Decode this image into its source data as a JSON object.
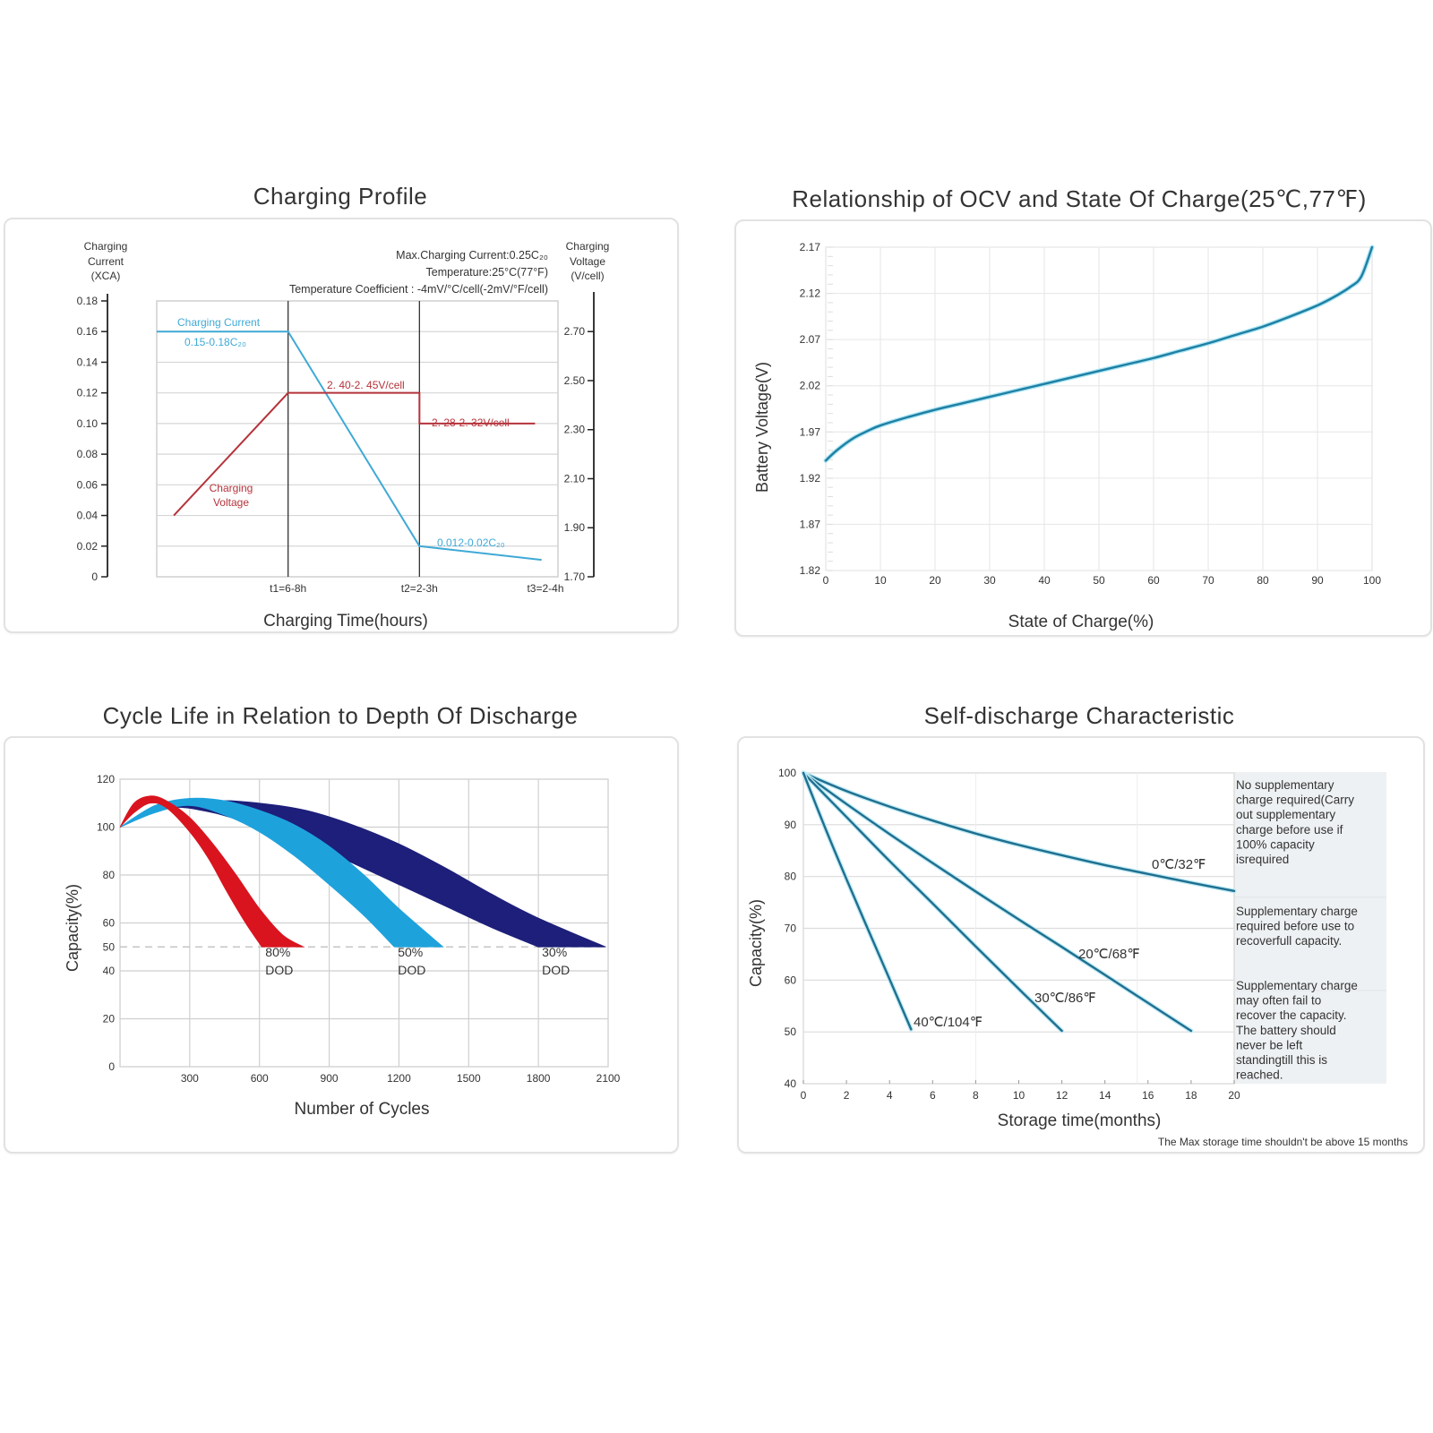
{
  "chart_data": [
    {
      "type": "line",
      "title": "Charging Profile",
      "xlabel": "Charging Time(hours)",
      "ylabel_left": [
        "Charging",
        "Current",
        "(XCA)"
      ],
      "ylabel_right": [
        "Charging",
        "Voltage",
        "(V/cell)"
      ],
      "left_ticks": [
        "0.18",
        "0.16",
        "0.14",
        "0.12",
        "0.10",
        "0.08",
        "0.06",
        "0.04",
        "0.02",
        "0"
      ],
      "left_tick_values": [
        0.18,
        0.16,
        0.14,
        0.12,
        0.1,
        0.08,
        0.06,
        0.04,
        0.02,
        0
      ],
      "right_ticks": [
        "2.70",
        "2.50",
        "2.30",
        "2.10",
        "1.90",
        "1.70"
      ],
      "right_tick_values": [
        2.7,
        2.5,
        2.3,
        2.1,
        1.9,
        1.7
      ],
      "x_ticks": [
        "t1=6-8h",
        "t2=2-3h",
        "t3=2-4h"
      ],
      "x_tick_values": [
        1,
        2,
        3
      ],
      "notes": [
        "Max.Charging Current:0.25C₂₀",
        "Temperature:25°C(77°F)",
        "Temperature  Coefficient : -4mV/°C/cell(-2mV/°F/cell)"
      ],
      "series": [
        {
          "name": "Charging Current",
          "color": "#3fa9d6",
          "axis": "left",
          "x": [
            0,
            1,
            2,
            2.93
          ],
          "y": [
            0.16,
            0.16,
            0.02,
            0.011
          ]
        },
        {
          "name": "Charging Voltage",
          "color": "#b5333b",
          "axis": "left",
          "x": [
            0.13,
            1,
            2,
            2,
            2.88
          ],
          "y": [
            0.04,
            0.12,
            0.12,
            0.1,
            0.1
          ]
        }
      ],
      "annotations": [
        {
          "text": "Charging Current",
          "color": "#3fa9d6"
        },
        {
          "text": "0.15-0.18C₂₀",
          "color": "#3fa9d6"
        },
        {
          "text": "2. 40-2. 45V/cell",
          "color": "#b5333b"
        },
        {
          "text": "2. 28-2. 32V/cell",
          "color": "#b5333b"
        },
        {
          "text": "Charging",
          "color": "#b5333b"
        },
        {
          "text": "Voltage",
          "color": "#b5333b"
        },
        {
          "text": "0.012-0.02C₂₀",
          "color": "#3fa9d6"
        }
      ],
      "xlim": [
        0,
        3
      ],
      "ylim": [
        0,
        0.18
      ],
      "grid": true
    },
    {
      "type": "line",
      "title": "Relationship of OCV and State Of Charge(25℃,77℉)",
      "xlabel": "State of Charge(%)",
      "ylabel": "Battery Voltage(V)",
      "x_ticks": [
        "0",
        "10",
        "20",
        "30",
        "40",
        "50",
        "60",
        "70",
        "80",
        "90",
        "100"
      ],
      "y_ticks": [
        "2.17",
        "2.12",
        "2.07",
        "2.02",
        "1.97",
        "1.92",
        "1.87",
        "1.82"
      ],
      "y_tick_values": [
        2.17,
        2.12,
        2.07,
        2.02,
        1.97,
        1.92,
        1.87,
        1.82
      ],
      "xlim": [
        0,
        100
      ],
      "ylim": [
        1.82,
        2.17
      ],
      "grid": true,
      "series": [
        {
          "name": "OCV",
          "color": "#1f7fa3",
          "x": [
            0,
            2,
            5,
            8,
            10,
            15,
            20,
            25,
            30,
            35,
            40,
            45,
            50,
            55,
            60,
            65,
            70,
            75,
            80,
            85,
            90,
            93,
            96,
            98,
            100
          ],
          "y": [
            1.939,
            1.95,
            1.963,
            1.972,
            1.977,
            1.986,
            1.994,
            2.001,
            2.008,
            2.015,
            2.022,
            2.029,
            2.036,
            2.043,
            2.05,
            2.058,
            2.066,
            2.075,
            2.084,
            2.095,
            2.107,
            2.116,
            2.127,
            2.138,
            2.17
          ]
        }
      ]
    },
    {
      "type": "area",
      "title": "Cycle Life in Relation to Depth Of Discharge",
      "xlabel": "Number of Cycles",
      "ylabel": "Capacity(%)",
      "x_ticks": [
        "300",
        "600",
        "900",
        "1200",
        "1500",
        "1800",
        "2100"
      ],
      "x_tick_values": [
        300,
        600,
        900,
        1200,
        1500,
        1800,
        2100
      ],
      "y_ticks": [
        "120",
        "100",
        "80",
        "60",
        "50",
        "40",
        "20",
        "0"
      ],
      "y_tick_values": [
        120,
        100,
        80,
        60,
        50,
        40,
        20,
        0
      ],
      "xlim": [
        0,
        2100
      ],
      "ylim": [
        0,
        120
      ],
      "grid": true,
      "reference_line": 50,
      "series": [
        {
          "name": "80% DOD",
          "label": [
            "80%",
            "DOD"
          ],
          "color": "#d9141f",
          "upper_x": [
            0,
            60,
            130,
            200,
            300,
            400,
            500,
            600,
            700,
            790
          ],
          "upper_y": [
            100,
            110,
            113,
            111,
            104,
            93,
            80,
            66,
            55,
            50
          ],
          "lower_x": [
            610,
            540,
            460,
            380,
            300,
            200,
            130,
            60,
            0
          ],
          "lower_y": [
            50,
            60,
            73,
            87,
            98,
            108,
            110,
            106,
            100
          ]
        },
        {
          "name": "50% DOD",
          "label": [
            "50%",
            "DOD"
          ],
          "color": "#1ea2dc",
          "upper_x": [
            0,
            150,
            300,
            450,
            600,
            750,
            900,
            1050,
            1200,
            1390
          ],
          "upper_y": [
            100,
            109,
            112,
            111,
            107,
            101,
            92,
            80,
            66,
            50
          ],
          "lower_x": [
            1180,
            1050,
            900,
            750,
            600,
            450,
            300,
            150,
            0
          ],
          "lower_y": [
            50,
            63,
            76,
            88,
            98,
            105,
            109,
            106,
            100
          ]
        },
        {
          "name": "30% DOD",
          "label": [
            "30%",
            "DOD"
          ],
          "color": "#1d1f7a",
          "upper_x": [
            0,
            200,
            400,
            600,
            800,
            1000,
            1200,
            1400,
            1600,
            1800,
            2090
          ],
          "upper_y": [
            100,
            108,
            111,
            110,
            107,
            101,
            93,
            83,
            72,
            62,
            50
          ],
          "lower_x": [
            1800,
            1600,
            1400,
            1200,
            1000,
            800,
            600,
            400,
            200,
            0
          ],
          "lower_y": [
            50,
            58,
            67,
            76,
            85,
            94,
            100,
            106,
            108,
            100
          ]
        }
      ]
    },
    {
      "type": "line",
      "title": "Self-discharge Characteristic",
      "xlabel": "Storage time(months)",
      "ylabel": "Capacity(%)",
      "x_ticks": [
        "0",
        "2",
        "4",
        "6",
        "8",
        "10",
        "12",
        "14",
        "16",
        "18",
        "20"
      ],
      "x_tick_values": [
        0,
        2,
        4,
        6,
        8,
        10,
        12,
        14,
        16,
        18,
        20
      ],
      "y_ticks": [
        "100",
        "90",
        "80",
        "70",
        "60",
        "50",
        "40"
      ],
      "y_tick_values": [
        100,
        90,
        80,
        70,
        60,
        50,
        40
      ],
      "xlim": [
        0,
        20
      ],
      "ylim": [
        40,
        100
      ],
      "grid": true,
      "series": [
        {
          "name": "0℃/32℉",
          "color": "#1f6f8f",
          "x": [
            0,
            2,
            4,
            6,
            8,
            10,
            12,
            14,
            16,
            18,
            20
          ],
          "y": [
            100,
            96.5,
            93.5,
            90.8,
            88.3,
            86.1,
            84.1,
            82.2,
            80.5,
            78.8,
            77.2
          ]
        },
        {
          "name": "20℃/68℉",
          "color": "#1f6f8f",
          "x": [
            0,
            2,
            4,
            6,
            8,
            10,
            12,
            14,
            16,
            18
          ],
          "y": [
            100,
            94,
            88.2,
            82.6,
            77.1,
            71.7,
            66.4,
            61,
            55.6,
            50.2
          ]
        },
        {
          "name": "30℃/86℉",
          "color": "#1f6f8f",
          "x": [
            0,
            2,
            4,
            6,
            8,
            10,
            12
          ],
          "y": [
            100,
            91.5,
            83,
            74.8,
            66.5,
            58.3,
            50.2
          ]
        },
        {
          "name": "40℃/104℉",
          "color": "#1f6f8f",
          "x": [
            0,
            1,
            2,
            3,
            4,
            5
          ],
          "y": [
            100,
            89.5,
            79.5,
            69.8,
            60.2,
            50.5
          ]
        }
      ],
      "zones": [
        "No supplementary charge required(Carry out supplementary charge before use if 100% capacity isrequired",
        "Supplementary charge required before use to recoverfull capacity.",
        "Supplementary charge may often fail to recover the capacity. The battery should never be left standingtill this is reached."
      ],
      "footnote": "The Max storage time shouldn't be above 15 months"
    }
  ]
}
